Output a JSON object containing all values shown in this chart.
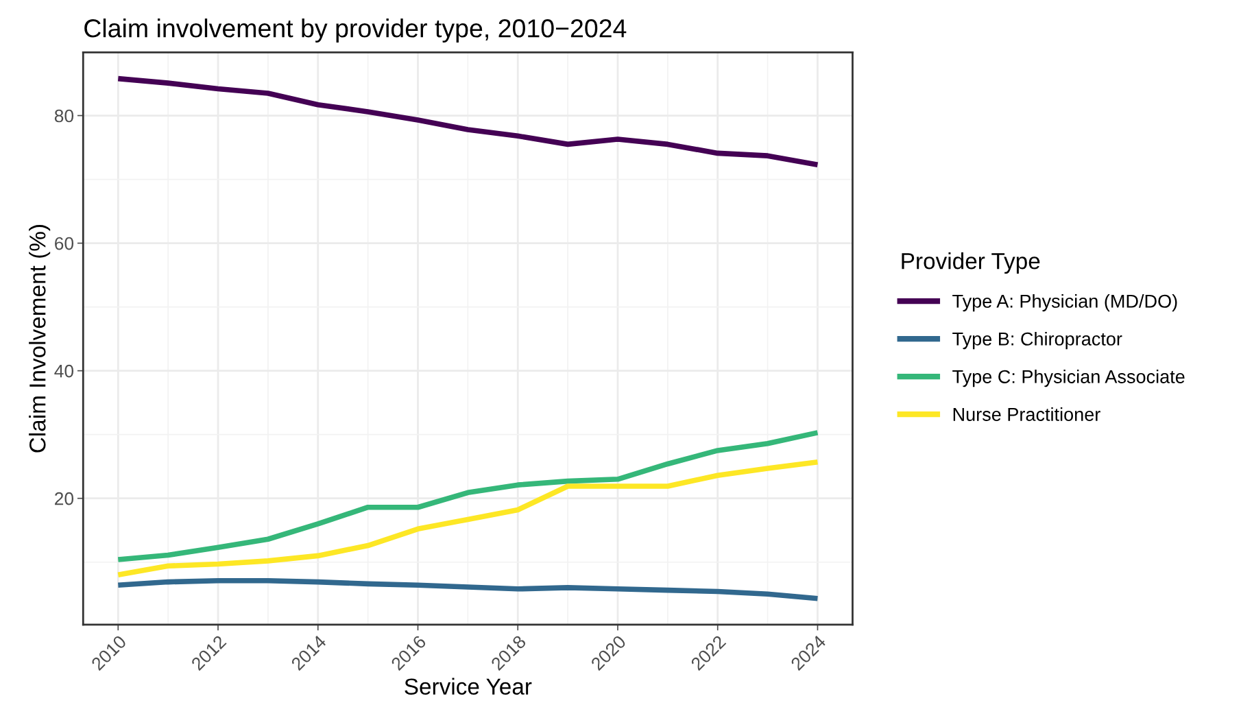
{
  "chart_data": {
    "type": "line",
    "title": "Claim involvement by provider type, 2010−2024",
    "xlabel": "Service Year",
    "ylabel": "Claim Involvement (%)",
    "legend_title": "Provider Type",
    "legend": "right",
    "grid": true,
    "x": [
      2010,
      2011,
      2012,
      2013,
      2014,
      2015,
      2016,
      2017,
      2018,
      2019,
      2020,
      2021,
      2022,
      2023,
      2024
    ],
    "xlim": [
      2009.3,
      2024.7
    ],
    "xticks": [
      2010,
      2012,
      2014,
      2016,
      2018,
      2020,
      2022,
      2024
    ],
    "ylim": [
      0.2,
      89.9
    ],
    "yticks": [
      20,
      40,
      60,
      80
    ],
    "series": [
      {
        "name": "Type A: Physician (MD/DO)",
        "color": "#440154",
        "values": [
          85.8,
          85.1,
          84.2,
          83.5,
          81.7,
          80.6,
          79.3,
          77.8,
          76.8,
          75.5,
          76.3,
          75.5,
          74.1,
          73.7,
          72.3
        ]
      },
      {
        "name": "Type B: Chiropractor",
        "color": "#31688e",
        "values": [
          6.4,
          6.9,
          7.1,
          7.1,
          6.9,
          6.6,
          6.4,
          6.1,
          5.8,
          6.0,
          5.8,
          5.6,
          5.4,
          5.0,
          4.3
        ]
      },
      {
        "name": "Type C: Physician Associate",
        "color": "#35b779",
        "values": [
          10.4,
          11.1,
          12.3,
          13.6,
          16.0,
          18.6,
          18.6,
          20.9,
          22.1,
          22.7,
          23.0,
          25.4,
          27.5,
          28.6,
          30.3
        ]
      },
      {
        "name": "Nurse Practitioner",
        "color": "#fde725",
        "values": [
          8.0,
          9.4,
          9.7,
          10.2,
          11.0,
          12.6,
          15.2,
          16.7,
          18.2,
          21.9,
          21.9,
          21.9,
          23.6,
          24.7,
          25.7
        ]
      }
    ]
  }
}
